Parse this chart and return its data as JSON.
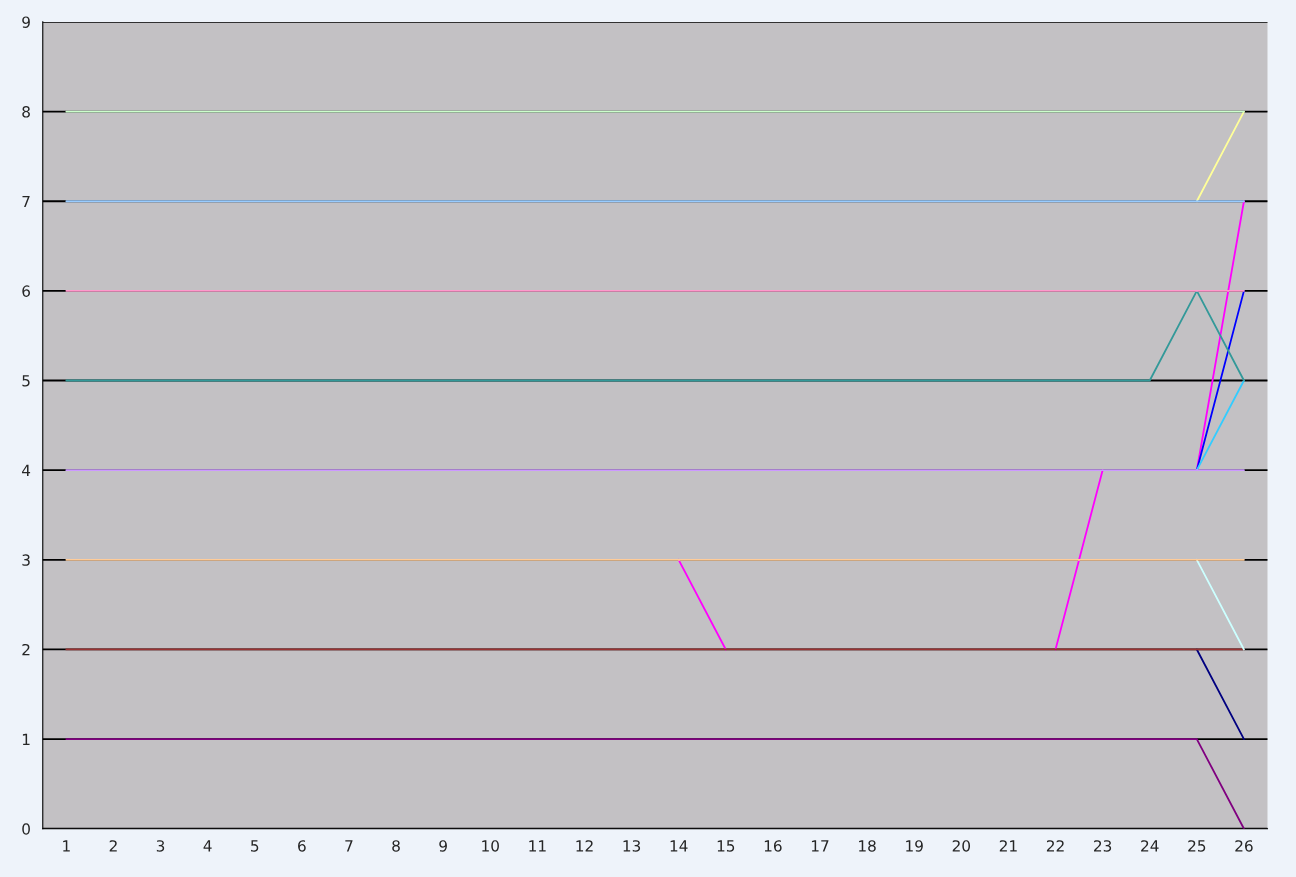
{
  "chart_data": {
    "type": "line",
    "categories": [
      "1",
      "2",
      "3",
      "4",
      "5",
      "6",
      "7",
      "8",
      "9",
      "10",
      "11",
      "12",
      "13",
      "14",
      "15",
      "16",
      "17",
      "18",
      "19",
      "20",
      "21",
      "22",
      "23",
      "24",
      "25",
      "26"
    ],
    "ylim": [
      0,
      9
    ],
    "yticks": [
      0,
      1,
      2,
      3,
      4,
      5,
      6,
      7,
      8,
      9
    ],
    "grid": "y",
    "marker": "none",
    "line_style": "solid",
    "series": [
      {
        "color": "#ff00ff",
        "values": [
          null,
          null,
          null,
          null,
          null,
          null,
          null,
          null,
          null,
          null,
          null,
          null,
          null,
          3,
          2,
          null,
          null,
          null,
          null,
          null,
          null,
          2,
          4,
          null,
          4,
          7
        ]
      },
      {
        "color": "#800080",
        "values": [
          1,
          1,
          1,
          1,
          1,
          1,
          1,
          1,
          1,
          1,
          1,
          1,
          1,
          1,
          1,
          1,
          1,
          1,
          1,
          1,
          1,
          1,
          1,
          1,
          1,
          0
        ]
      },
      {
        "color": "#000080",
        "values": [
          null,
          null,
          null,
          null,
          null,
          null,
          null,
          null,
          null,
          null,
          null,
          null,
          null,
          null,
          null,
          null,
          null,
          null,
          null,
          null,
          null,
          null,
          null,
          null,
          2,
          1
        ]
      },
      {
        "color": "#993333",
        "values": [
          2,
          2,
          2,
          2,
          2,
          2,
          2,
          2,
          2,
          2,
          2,
          2,
          2,
          2,
          2,
          2,
          2,
          2,
          2,
          2,
          2,
          2,
          2,
          2,
          2,
          2
        ]
      },
      {
        "color": "#ccffff",
        "values": [
          null,
          null,
          null,
          null,
          null,
          null,
          null,
          null,
          null,
          null,
          null,
          null,
          null,
          null,
          null,
          null,
          null,
          null,
          null,
          null,
          null,
          null,
          null,
          null,
          3,
          2
        ]
      },
      {
        "color": "#ffcc99",
        "values": [
          3,
          3,
          3,
          3,
          3,
          3,
          3,
          3,
          3,
          3,
          3,
          3,
          3,
          3,
          3,
          3,
          3,
          3,
          3,
          3,
          3,
          3,
          3,
          3,
          3,
          3
        ]
      },
      {
        "color": "#0000ff",
        "values": [
          null,
          null,
          null,
          null,
          null,
          null,
          null,
          null,
          null,
          null,
          null,
          null,
          null,
          null,
          null,
          null,
          null,
          null,
          null,
          null,
          null,
          null,
          null,
          null,
          4,
          6
        ]
      },
      {
        "color": "#33ccff",
        "values": [
          null,
          null,
          null,
          null,
          null,
          null,
          null,
          null,
          null,
          null,
          null,
          null,
          null,
          null,
          null,
          null,
          null,
          null,
          null,
          null,
          null,
          null,
          null,
          null,
          4,
          5
        ]
      },
      {
        "color": "#cc99ff",
        "values": [
          4,
          4,
          4,
          4,
          4,
          4,
          4,
          4,
          4,
          4,
          4,
          4,
          4,
          4,
          4,
          4,
          4,
          4,
          4,
          4,
          4,
          4,
          4,
          4,
          4,
          4
        ]
      },
      {
        "color": "#339999",
        "values": [
          5,
          5,
          5,
          5,
          5,
          5,
          5,
          5,
          5,
          5,
          5,
          5,
          5,
          5,
          5,
          5,
          5,
          5,
          5,
          5,
          5,
          5,
          5,
          5,
          6,
          5
        ]
      },
      {
        "color": "#ff99cc",
        "values": [
          6,
          6,
          6,
          6,
          6,
          6,
          6,
          6,
          6,
          6,
          6,
          6,
          6,
          6,
          6,
          6,
          6,
          6,
          6,
          6,
          6,
          6,
          6,
          6,
          6,
          6
        ]
      },
      {
        "color": "#ffff99",
        "values": [
          null,
          null,
          null,
          null,
          null,
          null,
          null,
          null,
          null,
          null,
          null,
          null,
          null,
          null,
          null,
          null,
          null,
          null,
          null,
          null,
          null,
          null,
          null,
          null,
          7,
          8
        ]
      },
      {
        "color": "#99ccff",
        "values": [
          7,
          7,
          7,
          7,
          7,
          7,
          7,
          7,
          7,
          7,
          7,
          7,
          7,
          7,
          7,
          7,
          7,
          7,
          7,
          7,
          7,
          7,
          7,
          7,
          7,
          7
        ]
      },
      {
        "color": "#ccffcc",
        "values": [
          8,
          8,
          8,
          8,
          8,
          8,
          8,
          8,
          8,
          8,
          8,
          8,
          8,
          8,
          8,
          8,
          8,
          8,
          8,
          8,
          8,
          8,
          8,
          8,
          8,
          8
        ]
      }
    ]
  }
}
